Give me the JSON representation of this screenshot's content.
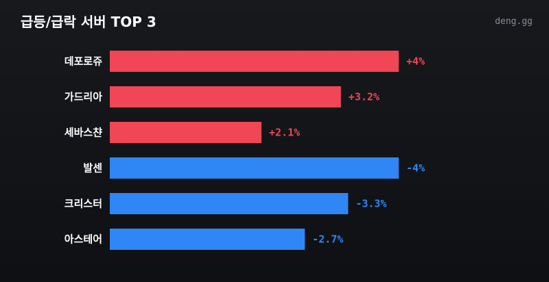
{
  "header": {
    "title": "급등/급락 서버 TOP 3",
    "brand": "deng.gg"
  },
  "colors": {
    "positive": "#f04655",
    "negative": "#2f86f5"
  },
  "chart_data": {
    "type": "bar",
    "orientation": "horizontal",
    "title": "급등/급락 서버 TOP 3",
    "categories": [
      "데포로쥬",
      "가드리아",
      "세바스챤",
      "발센",
      "크리스터",
      "아스테어"
    ],
    "values": [
      4,
      3.2,
      2.1,
      -4,
      -3.3,
      -2.7
    ],
    "value_labels": [
      "+4%",
      "+3.2%",
      "+2.1%",
      "-4%",
      "-3.3%",
      "-2.7%"
    ],
    "xlim": [
      0,
      4
    ],
    "grid": false,
    "legend": "none"
  }
}
